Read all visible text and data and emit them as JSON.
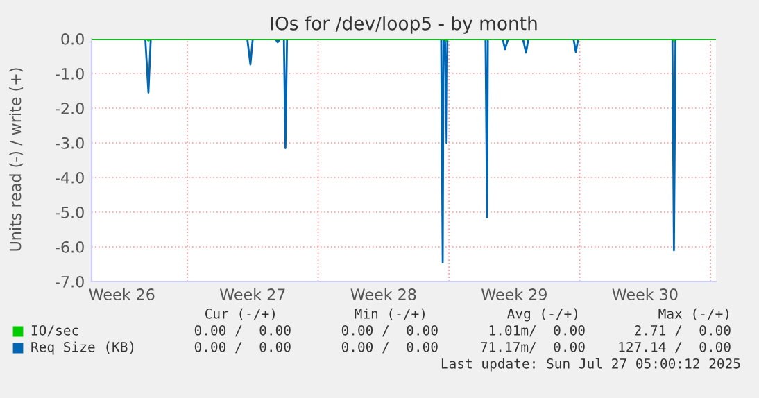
{
  "chart_data": {
    "type": "line",
    "title": "IOs for /dev/loop5 - by month",
    "ylabel": "Units read (-) / write (+)",
    "xlim": [
      "2025-06-24T21:00",
      "2025-07-28T07:00"
    ],
    "xticks": [
      {
        "value": "2025-06-26T12:00",
        "label": "Week 26"
      },
      {
        "value": "2025-06-30",
        "label": null
      },
      {
        "value": "2025-07-03T12:00",
        "label": "Week 27"
      },
      {
        "value": "2025-07-07",
        "label": null
      },
      {
        "value": "2025-07-10T12:00",
        "label": "Week 28"
      },
      {
        "value": "2025-07-14",
        "label": null
      },
      {
        "value": "2025-07-17T12:00",
        "label": "Week 29"
      },
      {
        "value": "2025-07-21",
        "label": null
      },
      {
        "value": "2025-07-24T12:00",
        "label": "Week 30"
      },
      {
        "value": "2025-07-28",
        "label": null
      }
    ],
    "ylim": [
      -7,
      0
    ],
    "yticks": [
      {
        "value": -7,
        "label": "-7.0"
      },
      {
        "value": -6,
        "label": "-6.0"
      },
      {
        "value": -5,
        "label": "-5.0"
      },
      {
        "value": -4,
        "label": "-4.0"
      },
      {
        "value": -3,
        "label": "-3.0"
      },
      {
        "value": -2,
        "label": "-2.0"
      },
      {
        "value": -1,
        "label": "-1.0"
      },
      {
        "value": 0,
        "label": "0.0"
      }
    ],
    "grid": true,
    "legend": "bottom left",
    "ref_lines": [
      {
        "axis": "y",
        "value": 0,
        "color": "#000000"
      }
    ],
    "series": [
      {
        "name": "IO/sec",
        "color": "#00cc00",
        "x": [
          "2025-06-24T21:00",
          "2025-06-27T20:00",
          "2025-06-27T22:00",
          "2025-06-28T00:00",
          "2025-07-13T19:00",
          "2025-07-13T21:00",
          "2025-07-13T22:00",
          "2025-07-25T23:00",
          "2025-07-26T01:00",
          "2025-07-26T03:00",
          "2025-07-28T07:00"
        ],
        "values": [
          0,
          0,
          -0.05,
          0,
          0,
          -0.05,
          0,
          0,
          -0.05,
          0,
          0
        ]
      },
      {
        "name": "Req Size (KB)",
        "color": "#0066b3",
        "x": [
          "2025-06-24T21:00",
          "2025-06-27T18:00",
          "2025-06-27T22:00",
          "2025-06-28T01:00",
          "2025-07-03T05:00",
          "2025-07-03T09:00",
          "2025-07-03T12:00",
          "2025-07-04T17:00",
          "2025-07-04T20:00",
          "2025-07-04T23:00",
          "2025-07-05T04:00",
          "2025-07-05T06:00",
          "2025-07-05T08:00",
          "2025-07-13T14:00",
          "2025-07-13T16:00",
          "2025-07-13T17:00",
          "2025-07-13T19:00",
          "2025-07-13T21:00",
          "2025-07-13T22:00",
          "2025-07-15T23:00",
          "2025-07-16T01:00",
          "2025-07-16T02:00",
          "2025-07-16T21:00",
          "2025-07-17T00:00",
          "2025-07-17T04:00",
          "2025-07-17T23:00",
          "2025-07-18T03:00",
          "2025-07-18T06:00",
          "2025-07-20T16:00",
          "2025-07-20T19:00",
          "2025-07-20T22:00",
          "2025-07-25T23:00",
          "2025-07-26T01:00",
          "2025-07-26T03:00",
          "2025-07-28T07:00"
        ],
        "values": [
          0,
          0,
          -1.55,
          0,
          0,
          -0.74,
          0,
          0,
          -0.1,
          0,
          0,
          -3.15,
          0,
          0,
          -6.45,
          0,
          0,
          -3.0,
          0,
          0,
          -5.15,
          0,
          0,
          -0.3,
          0,
          0,
          -0.4,
          0,
          0,
          -0.38,
          0,
          0,
          -6.1,
          0,
          0
        ]
      }
    ],
    "annotations": [
      "Cur (-/+)",
      "Min (-/+)",
      "Avg (-/+)",
      "Max (-/+)",
      "0.00 /  0.00",
      "0.00 /  0.00",
      "1.01m/  0.00",
      "2.71 /  0.00",
      "0.00 /  0.00",
      "0.00 /  0.00",
      "71.17m/  0.00",
      "127.14 /  0.00",
      "Last update: Sun Jul 27 05:00:12 2025"
    ]
  }
}
